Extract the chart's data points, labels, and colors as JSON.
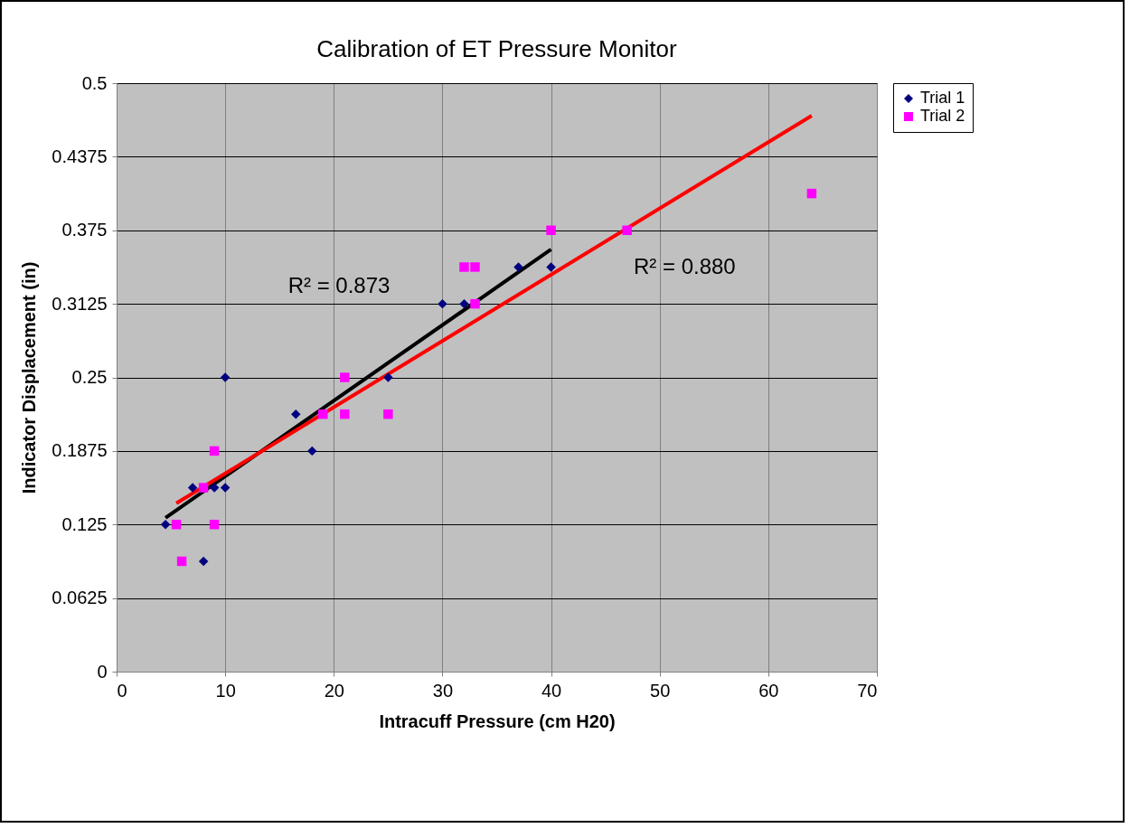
{
  "chart_data": {
    "type": "scatter",
    "title": "Calibration of ET Pressure Monitor",
    "xlabel": "Intracuff Pressure (cm H20)",
    "ylabel": "Indicator Displacement (in)",
    "xlim": [
      0,
      70
    ],
    "xticks": [
      0,
      10,
      20,
      30,
      40,
      50,
      60,
      70
    ],
    "ylim": [
      0,
      0.5
    ],
    "yticks": [
      0,
      0.0625,
      0.125,
      0.1875,
      0.25,
      0.3125,
      0.375,
      0.4375,
      0.5
    ],
    "grid": true,
    "legend": "right",
    "series": [
      {
        "name": "Trial 1",
        "color": "#000080",
        "marker": "diamond",
        "x": [
          4.5,
          8,
          7,
          9,
          10,
          10,
          16.5,
          18,
          25,
          30,
          32,
          37,
          40
        ],
        "values": [
          0.125,
          0.09375,
          0.15625,
          0.15625,
          0.15625,
          0.25,
          0.21875,
          0.1875,
          0.25,
          0.3125,
          0.3125,
          0.34375,
          0.34375
        ]
      },
      {
        "name": "Trial 2",
        "color": "#ff00ff",
        "marker": "square",
        "x": [
          5.5,
          6,
          8,
          9,
          9,
          19,
          21,
          21,
          25,
          32,
          33,
          33,
          40,
          47,
          64
        ],
        "values": [
          0.125,
          0.09375,
          0.15625,
          0.1875,
          0.125,
          0.21875,
          0.25,
          0.21875,
          0.21875,
          0.34375,
          0.34375,
          0.3125,
          0.375,
          0.375,
          0.40625
        ]
      },
      {
        "type": "line",
        "color": "#000000",
        "x": [
          4.5,
          40
        ],
        "values": [
          0.1306,
          0.3587
        ]
      },
      {
        "type": "line",
        "color": "#ff0000",
        "x": [
          5.5,
          64
        ],
        "values": [
          0.143,
          0.4724
        ]
      }
    ],
    "annotations": [
      "R² = 0.873",
      "R² = 0.880"
    ]
  }
}
